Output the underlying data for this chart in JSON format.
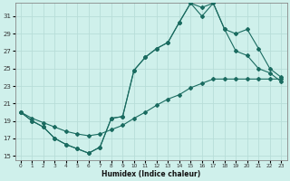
{
  "xlabel": "Humidex (Indice chaleur)",
  "xlim": [
    -0.5,
    23.5
  ],
  "ylim": [
    14.5,
    32.5
  ],
  "xticks": [
    0,
    1,
    2,
    3,
    4,
    5,
    6,
    7,
    8,
    9,
    10,
    11,
    12,
    13,
    14,
    15,
    16,
    17,
    18,
    19,
    20,
    21,
    22,
    23
  ],
  "yticks": [
    15,
    17,
    19,
    21,
    23,
    25,
    27,
    29,
    31
  ],
  "bg_color": "#cff0eb",
  "grid_color": "#b8ddd8",
  "line_color": "#1a6b60",
  "line1_x": [
    0,
    1,
    2,
    3,
    4,
    5,
    6,
    7,
    8,
    9,
    10,
    11,
    12,
    13,
    14,
    15,
    16,
    17,
    18,
    19,
    20,
    21,
    22,
    23
  ],
  "line1_y": [
    20.0,
    19.0,
    18.3,
    17.0,
    16.3,
    15.8,
    15.3,
    16.0,
    19.3,
    19.5,
    24.8,
    26.3,
    27.3,
    28.0,
    30.3,
    32.5,
    32.0,
    32.5,
    29.5,
    27.0,
    26.5,
    25.0,
    24.5,
    23.5
  ],
  "line2_x": [
    0,
    1,
    2,
    3,
    4,
    5,
    6,
    7,
    8,
    9,
    10,
    11,
    12,
    13,
    14,
    15,
    16,
    17,
    18,
    19,
    20,
    21,
    22,
    23
  ],
  "line2_y": [
    20.0,
    19.0,
    18.3,
    17.0,
    16.3,
    15.8,
    15.3,
    16.0,
    19.3,
    19.5,
    24.8,
    26.3,
    27.3,
    28.0,
    30.3,
    32.5,
    31.0,
    32.5,
    29.5,
    29.0,
    29.5,
    27.3,
    25.0,
    24.0
  ],
  "line3_x": [
    0,
    1,
    2,
    3,
    4,
    5,
    6,
    7,
    8,
    9,
    10,
    11,
    12,
    13,
    14,
    15,
    16,
    17,
    18,
    19,
    20,
    21,
    22,
    23
  ],
  "line3_y": [
    20.0,
    19.3,
    18.8,
    18.3,
    17.8,
    17.5,
    17.3,
    17.5,
    18.0,
    18.5,
    19.3,
    20.0,
    20.8,
    21.5,
    22.0,
    22.8,
    23.3,
    23.8,
    23.8,
    23.8,
    23.8,
    23.8,
    23.8,
    23.8
  ]
}
